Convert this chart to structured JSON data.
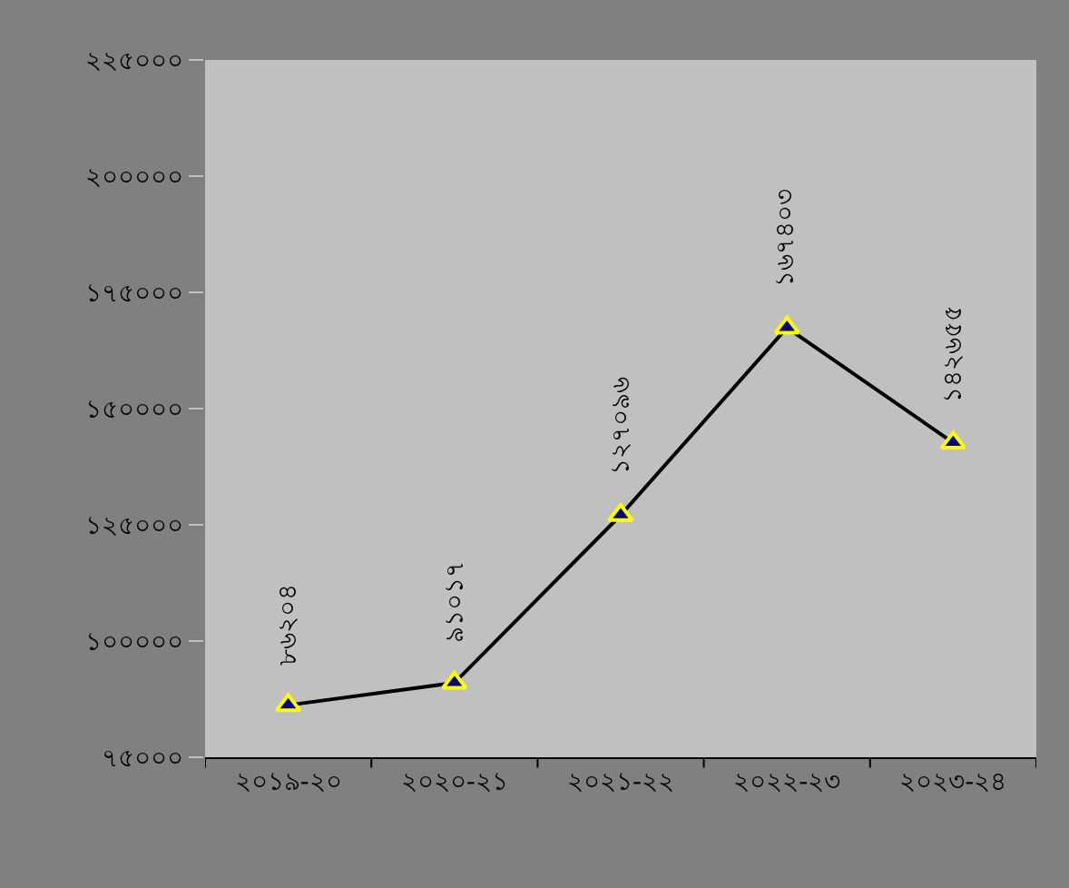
{
  "chart_data": {
    "type": "line",
    "categories": [
      "২০১৯-২০",
      "২০২০-২১",
      "২০২১-২২",
      "২০২২-২৩",
      "২০২৩-২৪"
    ],
    "series": [
      {
        "color": "#000000",
        "values": [
          86204,
          91017,
          127096,
          167403,
          142655
        ],
        "value_labels": [
          "৮৬২০৪",
          "৯১০১৭",
          "১২৭০৯৬",
          "১৬৭৪০৩",
          "১৪২৬৫৫"
        ]
      }
    ],
    "ylim": [
      75000,
      225000
    ],
    "yticks": [
      {
        "value": 75000,
        "label": "৭৫০০০"
      },
      {
        "value": 100000,
        "label": "১০০০০০"
      },
      {
        "value": 125000,
        "label": "১২৫০০০"
      },
      {
        "value": 150000,
        "label": "১৫০০০০"
      },
      {
        "value": 175000,
        "label": "১৭৫০০০"
      },
      {
        "value": 200000,
        "label": "২০০০০০"
      },
      {
        "value": 225000,
        "label": "২২৫০০০"
      }
    ],
    "grid": false,
    "legend": false,
    "marker": "triangle",
    "line_style": "solid"
  }
}
